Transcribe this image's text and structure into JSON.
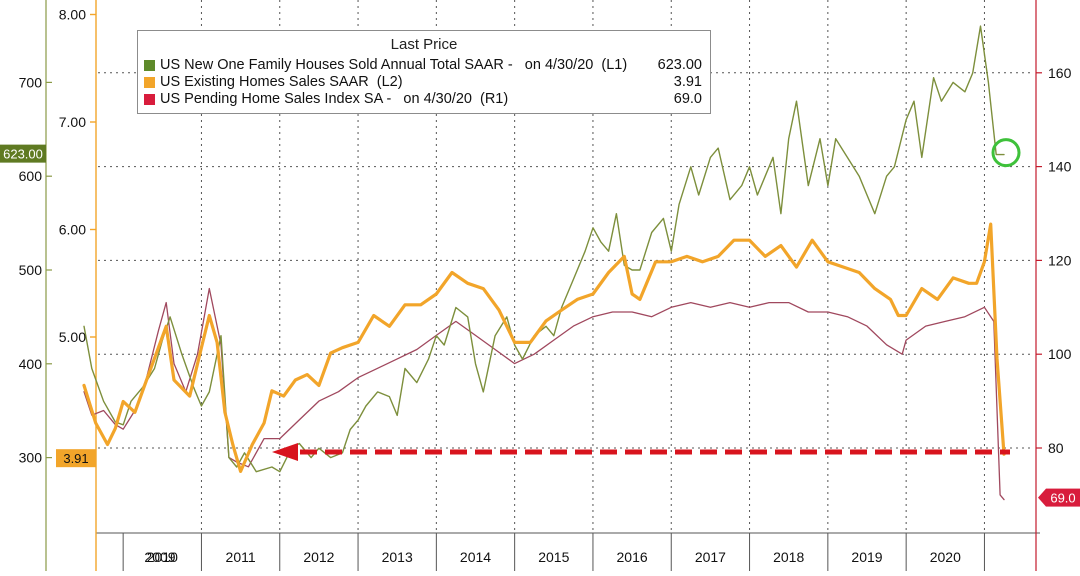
{
  "colors": {
    "new_homes": "#7d8f3c",
    "existing_homes": "#f2a52a",
    "pending_homes": "#a0485e",
    "red_arrow": "#d8141e",
    "highlight_circle": "#3ec13a",
    "grid": "#555555"
  },
  "legend": {
    "title": "Last Price",
    "items": [
      {
        "label": "US New One Family Houses Sold Annual Total SAAR -   on 4/30/20  (L1)",
        "value": "623.00"
      },
      {
        "label": "US Existing Homes Sales SAAR  (L2)",
        "value": "3.91"
      },
      {
        "label": "US Pending Home Sales Index SA -   on 4/30/20  (R1)",
        "value": "69.0"
      }
    ]
  },
  "axes": {
    "l1_ticks": [
      "700",
      "600",
      "500",
      "400",
      "300"
    ],
    "l2_ticks": [
      "8.00",
      "7.00",
      "6.00",
      "5.00"
    ],
    "r1_ticks": [
      "160",
      "140",
      "120",
      "100",
      "80"
    ],
    "x_years": [
      "2009",
      "2010",
      "2011",
      "2012",
      "2013",
      "2014",
      "2015",
      "2016",
      "2017",
      "2018",
      "2019",
      "2020"
    ]
  },
  "badges": {
    "l1_last": "623.00",
    "l2_last": "3.91",
    "r1_last": "69.0"
  },
  "chart_data": {
    "type": "line",
    "x_range": [
      "2008-07",
      "2020-05"
    ],
    "ylim_l1": [
      200,
      790
    ],
    "ylim_l2": [
      3.6,
      8.1
    ],
    "ylim_r1": [
      58,
      175
    ],
    "series": [
      {
        "name": "US New One Family Houses Sold Annual Total SAAR -   on 4/30/20  (L1)",
        "axis": "L1",
        "x": [
          2008.5,
          2008.6,
          2008.75,
          2008.9,
          2009.0,
          2009.1,
          2009.25,
          2009.4,
          2009.5,
          2009.6,
          2009.75,
          2009.9,
          2010.0,
          2010.1,
          2010.25,
          2010.35,
          2010.45,
          2010.55,
          2010.7,
          2010.9,
          2011.0,
          2011.15,
          2011.25,
          2011.4,
          2011.5,
          2011.65,
          2011.8,
          2011.9,
          2012.0,
          2012.1,
          2012.25,
          2012.4,
          2012.5,
          2012.6,
          2012.75,
          2012.9,
          2013.0,
          2013.1,
          2013.25,
          2013.4,
          2013.5,
          2013.6,
          2013.75,
          2013.9,
          2014.0,
          2014.1,
          2014.25,
          2014.4,
          2014.5,
          2014.6,
          2014.75,
          2014.9,
          2015.0,
          2015.1,
          2015.2,
          2015.3,
          2015.4,
          2015.5,
          2015.6,
          2015.75,
          2015.9,
          2016.0,
          2016.1,
          2016.25,
          2016.35,
          2016.5,
          2016.6,
          2016.75,
          2016.9,
          2017.0,
          2017.1,
          2017.2,
          2017.3,
          2017.4,
          2017.5,
          2017.6,
          2017.75,
          2017.9,
          2018.0,
          2018.1,
          2018.25,
          2018.4,
          2018.5,
          2018.6,
          2018.75,
          2018.85,
          2019.0,
          2019.1,
          2019.2,
          2019.35,
          2019.45,
          2019.6,
          2019.75,
          2019.85,
          2019.95,
          2020.05,
          2020.15,
          2020.25
        ],
        "y": [
          440,
          395,
          360,
          338,
          335,
          360,
          375,
          395,
          425,
          450,
          410,
          375,
          355,
          370,
          430,
          300,
          290,
          305,
          285,
          290,
          285,
          310,
          315,
          300,
          310,
          300,
          305,
          330,
          340,
          355,
          370,
          365,
          345,
          395,
          380,
          405,
          430,
          420,
          460,
          450,
          400,
          370,
          430,
          450,
          420,
          405,
          430,
          440,
          430,
          460,
          490,
          520,
          545,
          530,
          520,
          560,
          505,
          500,
          500,
          540,
          555,
          520,
          570,
          610,
          580,
          620,
          630,
          575,
          590,
          610,
          580,
          600,
          620,
          560,
          640,
          680,
          590,
          640,
          590,
          640,
          620,
          600,
          580,
          560,
          600,
          610,
          660,
          680,
          620,
          705,
          680,
          700,
          690,
          710,
          760,
          700,
          623,
          623
        ]
      },
      {
        "name": "US Existing Homes Sales SAAR  (L2)",
        "axis": "L2",
        "x": [
          2008.5,
          2008.65,
          2008.8,
          2008.9,
          2009.0,
          2009.15,
          2009.3,
          2009.45,
          2009.55,
          2009.65,
          2009.85,
          2010.0,
          2010.1,
          2010.2,
          2010.3,
          2010.4,
          2010.5,
          2010.65,
          2010.8,
          2010.9,
          2011.05,
          2011.2,
          2011.35,
          2011.5,
          2011.65,
          2011.8,
          2012.0,
          2012.2,
          2012.4,
          2012.6,
          2012.8,
          2013.0,
          2013.2,
          2013.4,
          2013.6,
          2013.8,
          2014.0,
          2014.2,
          2014.4,
          2014.6,
          2014.8,
          2015.0,
          2015.2,
          2015.4,
          2015.5,
          2015.6,
          2015.8,
          2016.0,
          2016.2,
          2016.4,
          2016.6,
          2016.8,
          2017.0,
          2017.2,
          2017.4,
          2017.6,
          2017.8,
          2018.0,
          2018.2,
          2018.4,
          2018.6,
          2018.8,
          2018.9,
          2019.0,
          2019.2,
          2019.4,
          2019.6,
          2019.8,
          2019.9,
          2020.0,
          2020.08,
          2020.16,
          2020.25
        ],
        "y": [
          4.55,
          4.2,
          4.0,
          4.15,
          4.4,
          4.3,
          4.6,
          4.9,
          5.1,
          4.6,
          4.45,
          4.9,
          5.2,
          4.95,
          4.3,
          4.0,
          3.75,
          4.0,
          4.2,
          4.5,
          4.45,
          4.6,
          4.65,
          4.55,
          4.85,
          4.9,
          4.95,
          5.2,
          5.1,
          5.3,
          5.3,
          5.4,
          5.6,
          5.5,
          5.45,
          5.25,
          4.95,
          4.95,
          5.15,
          5.25,
          5.35,
          5.4,
          5.6,
          5.75,
          5.4,
          5.35,
          5.7,
          5.7,
          5.75,
          5.7,
          5.75,
          5.9,
          5.9,
          5.75,
          5.85,
          5.65,
          5.9,
          5.7,
          5.65,
          5.6,
          5.45,
          5.35,
          5.2,
          5.2,
          5.45,
          5.35,
          5.55,
          5.5,
          5.5,
          5.7,
          6.05,
          4.8,
          3.91
        ]
      },
      {
        "name": "US Pending Home Sales Index SA -   on 4/30/20  (R1)",
        "axis": "R1",
        "x": [
          2008.5,
          2008.6,
          2008.75,
          2008.9,
          2009.0,
          2009.15,
          2009.3,
          2009.45,
          2009.55,
          2009.65,
          2009.8,
          2009.95,
          2010.1,
          2010.25,
          2010.35,
          2010.45,
          2010.6,
          2010.8,
          2011.0,
          2011.25,
          2011.5,
          2011.75,
          2012.0,
          2012.25,
          2012.5,
          2012.75,
          2013.0,
          2013.25,
          2013.5,
          2013.75,
          2014.0,
          2014.25,
          2014.5,
          2014.75,
          2015.0,
          2015.25,
          2015.5,
          2015.75,
          2016.0,
          2016.25,
          2016.5,
          2016.75,
          2017.0,
          2017.25,
          2017.5,
          2017.75,
          2018.0,
          2018.25,
          2018.5,
          2018.75,
          2018.95,
          2019.0,
          2019.25,
          2019.5,
          2019.75,
          2020.0,
          2020.12,
          2020.2,
          2020.25
        ],
        "y": [
          92,
          87,
          88,
          85,
          84,
          88,
          95,
          105,
          111,
          98,
          92,
          100,
          114,
          102,
          78,
          77,
          76,
          82,
          82,
          86,
          90,
          92,
          95,
          97,
          99,
          101,
          104,
          107,
          104,
          101,
          98,
          100,
          103,
          106,
          108,
          109,
          109,
          108,
          110,
          111,
          110,
          111,
          110,
          111,
          111,
          109,
          109,
          108,
          106,
          102,
          100,
          103,
          106,
          107,
          108,
          110,
          107,
          70,
          69
        ]
      }
    ]
  }
}
